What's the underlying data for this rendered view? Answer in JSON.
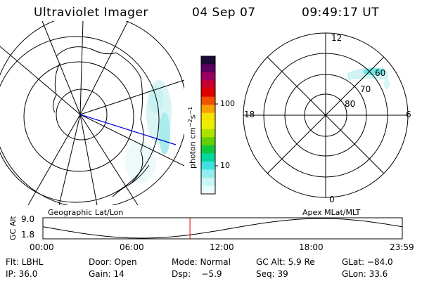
{
  "header": {
    "title": "Ultraviolet Imager",
    "date": "04 Sep 07",
    "time": "09:49:17 UT"
  },
  "geo_map": {
    "label": "Geographic Lat/Lon"
  },
  "colorbar": {
    "unit_label": "photon cm",
    "unit_exp1": "−2",
    "unit_s": "s",
    "unit_exp2": "−1",
    "tick_100": "100",
    "tick_10": "10",
    "colors": [
      "#1c0a3a",
      "#5a0060",
      "#9a0060",
      "#c8002a",
      "#e00000",
      "#f05000",
      "#f8a000",
      "#f8e000",
      "#e8f000",
      "#b0e000",
      "#60d000",
      "#10c840",
      "#00d8a0",
      "#40e0e0",
      "#90eef0",
      "#c8f6f8",
      "#eafcfc"
    ]
  },
  "polar_map": {
    "label": "Apex MLat/MLT",
    "mlt_top": "12",
    "mlt_left": "18",
    "mlt_right": "6",
    "mlt_bottom": "0",
    "lat_60": "60",
    "lat_70": "70",
    "lat_80": "80"
  },
  "altitude_chart": {
    "ylabel": "GC Alt",
    "y_ticks": [
      "9.0",
      "1.8"
    ],
    "x_ticks": [
      "00:00",
      "06:00",
      "12:00",
      "18:00",
      "23:59"
    ],
    "current_time_hours": 9.82,
    "marker_color": "#e00000"
  },
  "info": {
    "flt": "Flt: LBHL",
    "ip": "IP: 36.0",
    "door": "Door: Open",
    "gain": "Gain: 14",
    "mode": "Mode: Normal",
    "dsp": "Dsp:",
    "dsp_val": "−5.9",
    "gcalt": "GC Alt: 5.9 Re",
    "seq": "Seq: 39",
    "glat": "GLat: −84.0",
    "glon": "GLon:  33.6"
  }
}
